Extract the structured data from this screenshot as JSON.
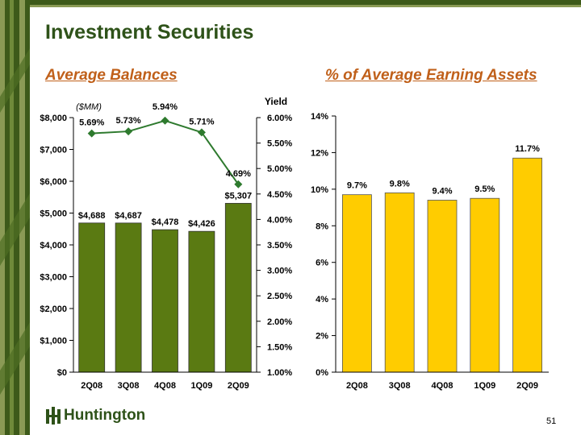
{
  "slide": {
    "title": "Investment Securities",
    "subtitle_left": "Average Balances",
    "subtitle_right": "% of Average Earning Assets",
    "logo_text": "Huntington",
    "page_number": "51"
  },
  "colors": {
    "title": "#2e5219",
    "subtitle": "#c0601a",
    "bar_green": "#5a7a12",
    "line_green": "#2e7a2e",
    "bar_gold": "#ffcc00",
    "band_dark": "#3d5a1a",
    "band_light": "#8a9a55"
  },
  "chart_data": [
    {
      "type": "bar",
      "categories": [
        "2Q08",
        "3Q08",
        "4Q08",
        "1Q09",
        "2Q09"
      ],
      "series": [
        {
          "values": [
            4688,
            4687,
            4478,
            4426,
            5307
          ],
          "labels": [
            "$4,688",
            "$4,687",
            "$4,478",
            "$4,426",
            "$5,307"
          ],
          "axis": "left"
        },
        {
          "name": "Yield",
          "type": "line",
          "values": [
            5.69,
            5.73,
            5.94,
            5.71,
            4.69
          ],
          "labels": [
            "5.69%",
            "5.73%",
            "5.94%",
            "5.71%",
            "4.69%"
          ],
          "axis": "right"
        }
      ],
      "ylabel": "($MM)",
      "y2label": "Yield",
      "ylim": [
        0,
        8000
      ],
      "yticks": [
        0,
        1000,
        2000,
        3000,
        4000,
        5000,
        6000,
        7000,
        8000
      ],
      "ytick_labels": [
        "$0",
        "$1,000",
        "$2,000",
        "$3,000",
        "$4,000",
        "$5,000",
        "$6,000",
        "$7,000",
        "$8,000"
      ],
      "y2lim": [
        1.0,
        6.0
      ],
      "y2ticks": [
        1.0,
        1.5,
        2.0,
        2.5,
        3.0,
        3.5,
        4.0,
        4.5,
        5.0,
        5.5,
        6.0
      ],
      "y2tick_labels": [
        "1.00%",
        "1.50%",
        "2.00%",
        "2.50%",
        "3.00%",
        "3.50%",
        "4.00%",
        "4.50%",
        "5.00%",
        "5.50%",
        "6.00%"
      ],
      "grid": false
    },
    {
      "type": "bar",
      "categories": [
        "2Q08",
        "3Q08",
        "4Q08",
        "1Q09",
        "2Q09"
      ],
      "values": [
        9.7,
        9.8,
        9.4,
        9.5,
        11.7
      ],
      "labels": [
        "9.7%",
        "9.8%",
        "9.4%",
        "9.5%",
        "11.7%"
      ],
      "ylim": [
        0,
        14
      ],
      "yticks": [
        0,
        2,
        4,
        6,
        8,
        10,
        12,
        14
      ],
      "ytick_labels": [
        "0%",
        "2%",
        "4%",
        "6%",
        "8%",
        "10%",
        "12%",
        "14%"
      ],
      "grid": false
    }
  ]
}
